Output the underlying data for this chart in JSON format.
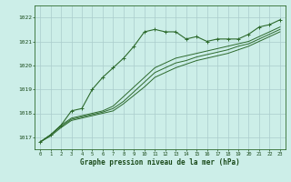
{
  "x": [
    0,
    1,
    2,
    3,
    4,
    5,
    6,
    7,
    8,
    9,
    10,
    11,
    12,
    13,
    14,
    15,
    16,
    17,
    18,
    19,
    20,
    21,
    22,
    23
  ],
  "line_main": [
    1016.8,
    1017.1,
    1017.5,
    1018.1,
    1018.2,
    1019.0,
    1019.5,
    1019.9,
    1020.3,
    1020.8,
    1021.4,
    1021.5,
    1021.4,
    1021.4,
    1021.1,
    1021.2,
    1021.0,
    1021.1,
    1021.1,
    1021.1,
    1021.3,
    1021.6,
    1021.7,
    1021.9
  ],
  "line1": [
    1016.8,
    1017.1,
    1017.5,
    1017.8,
    1017.9,
    1018.0,
    1018.1,
    1018.3,
    1018.7,
    1019.1,
    1019.5,
    1019.9,
    1020.1,
    1020.3,
    1020.4,
    1020.5,
    1020.6,
    1020.7,
    1020.8,
    1020.9,
    1021.0,
    1021.2,
    1021.4,
    1021.6
  ],
  "line2": [
    1016.8,
    1017.1,
    1017.45,
    1017.75,
    1017.85,
    1017.95,
    1018.05,
    1018.2,
    1018.5,
    1018.9,
    1019.3,
    1019.7,
    1019.9,
    1020.1,
    1020.2,
    1020.35,
    1020.45,
    1020.55,
    1020.65,
    1020.8,
    1020.9,
    1021.1,
    1021.3,
    1021.5
  ],
  "line3": [
    1016.8,
    1017.05,
    1017.4,
    1017.7,
    1017.8,
    1017.9,
    1018.0,
    1018.1,
    1018.4,
    1018.75,
    1019.1,
    1019.5,
    1019.7,
    1019.9,
    1020.05,
    1020.2,
    1020.3,
    1020.4,
    1020.5,
    1020.65,
    1020.8,
    1021.0,
    1021.2,
    1021.4
  ],
  "bg_color": "#cceee8",
  "line_color": "#2d6a2d",
  "grid_color": "#aacccc",
  "text_color": "#1a4a1a",
  "xlabel": "Graphe pression niveau de la mer (hPa)",
  "ylim_min": 1016.5,
  "ylim_max": 1022.5,
  "yticks": [
    1017,
    1018,
    1019,
    1020,
    1021,
    1022
  ],
  "figsize": [
    3.2,
    2.0
  ],
  "dpi": 100
}
